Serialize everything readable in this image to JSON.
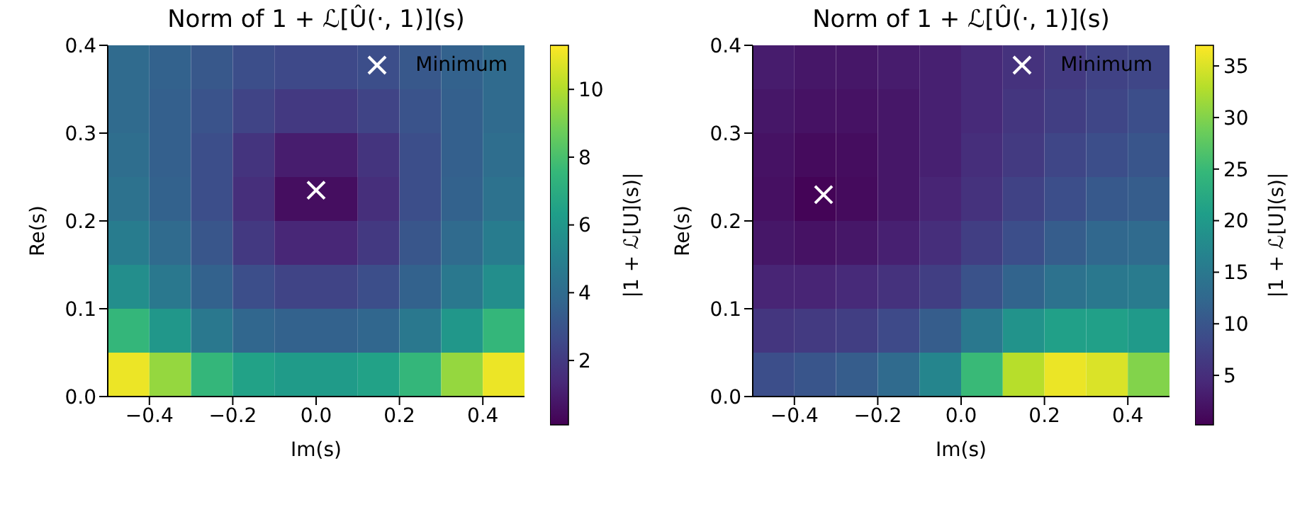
{
  "chart_data": [
    {
      "type": "heatmap",
      "title": "Norm of 1 + ℒ[Û(·, 1)](s)",
      "xlabel": "Im(s)",
      "ylabel": "Re(s)",
      "clabel": "|1 + ℒ[U](s)|",
      "legend": "top right",
      "marker": "cross",
      "xlim": [
        -0.5,
        0.5
      ],
      "xticks": [
        {
          "value": -0.4,
          "label": "−0.4"
        },
        {
          "value": -0.2,
          "label": "−0.2"
        },
        {
          "value": 0,
          "label": "0.0"
        },
        {
          "value": 0.2,
          "label": "0.2"
        },
        {
          "value": 0.4,
          "label": "0.4"
        }
      ],
      "ylim": [
        0,
        0.4
      ],
      "yticks": [
        {
          "value": 0,
          "label": "0.0"
        },
        {
          "value": 0.1,
          "label": "0.1"
        },
        {
          "value": 0.2,
          "label": "0.2"
        },
        {
          "value": 0.3,
          "label": "0.3"
        },
        {
          "value": 0.4,
          "label": "0.4"
        }
      ],
      "clim": [
        0.1,
        11.3
      ],
      "cticks": [
        2,
        4,
        6,
        8,
        10
      ],
      "cells": [
        [
          4.0,
          3.6,
          3.2,
          2.8,
          2.6,
          2.6,
          2.8,
          3.2,
          3.6,
          4.0
        ],
        [
          4.0,
          3.5,
          3.0,
          2.4,
          2.0,
          2.0,
          2.4,
          3.0,
          3.5,
          4.0
        ],
        [
          4.1,
          3.5,
          2.8,
          1.8,
          1.0,
          1.0,
          1.8,
          2.8,
          3.5,
          4.1
        ],
        [
          4.3,
          3.6,
          2.8,
          1.6,
          0.5,
          0.5,
          1.6,
          2.8,
          3.6,
          4.3
        ],
        [
          4.8,
          4.0,
          3.1,
          2.0,
          1.3,
          1.3,
          2.0,
          3.1,
          4.0,
          4.8
        ],
        [
          5.6,
          4.6,
          3.6,
          2.8,
          2.4,
          2.4,
          2.8,
          3.6,
          4.6,
          5.6
        ],
        [
          7.5,
          6.0,
          4.6,
          3.8,
          3.6,
          3.6,
          3.8,
          4.6,
          6.0,
          7.5
        ],
        [
          11.0,
          9.5,
          7.5,
          6.5,
          6.2,
          6.2,
          6.5,
          7.5,
          9.5,
          11.0
        ]
      ],
      "series": [
        {
          "type": "scatter",
          "name": "Minimum",
          "color": "#ffffff",
          "x": [
            0.0
          ],
          "values": [
            0.235
          ]
        }
      ]
    },
    {
      "type": "heatmap",
      "title": "Norm of 1 + ℒ[Û(·, 1)](s)",
      "xlabel": "Im(s)",
      "ylabel": "Re(s)",
      "clabel": "|1 + ℒ[U](s)|",
      "legend": "top right",
      "marker": "cross",
      "xlim": [
        -0.5,
        0.5
      ],
      "xticks": [
        {
          "value": -0.4,
          "label": "−0.4"
        },
        {
          "value": -0.2,
          "label": "−0.2"
        },
        {
          "value": 0,
          "label": "0.0"
        },
        {
          "value": 0.2,
          "label": "0.2"
        },
        {
          "value": 0.4,
          "label": "0.4"
        }
      ],
      "ylim": [
        0,
        0.4
      ],
      "yticks": [
        {
          "value": 0,
          "label": "0.0"
        },
        {
          "value": 0.1,
          "label": "0.1"
        },
        {
          "value": 0.2,
          "label": "0.2"
        },
        {
          "value": 0.3,
          "label": "0.3"
        },
        {
          "value": 0.4,
          "label": "0.4"
        }
      ],
      "clim": [
        0.2,
        37
      ],
      "cticks": [
        5,
        10,
        15,
        20,
        25,
        30,
        35
      ],
      "cells": [
        [
          3,
          2.5,
          2.5,
          3,
          3.5,
          4.5,
          5.5,
          6.5,
          7.5,
          8
        ],
        [
          2.5,
          2,
          2,
          2.5,
          3.5,
          4.5,
          6,
          7,
          8,
          9
        ],
        [
          2,
          1.2,
          1.5,
          2.5,
          3.5,
          5,
          6.5,
          8,
          9,
          10
        ],
        [
          1.8,
          0.5,
          1.2,
          2.5,
          4,
          5.5,
          7.5,
          9,
          10.5,
          11
        ],
        [
          2.5,
          2,
          2.5,
          3.5,
          5,
          7,
          9,
          11,
          12.5,
          13
        ],
        [
          4,
          4,
          4.5,
          5.5,
          7,
          9.5,
          12,
          14,
          15,
          15.5
        ],
        [
          6,
          6.5,
          7,
          8.5,
          11,
          15,
          19,
          21,
          21,
          20
        ],
        [
          9,
          10,
          11,
          13,
          17,
          25,
          33,
          36,
          35,
          30
        ]
      ],
      "series": [
        {
          "type": "scatter",
          "name": "Minimum",
          "color": "#ffffff",
          "x": [
            -0.33
          ],
          "values": [
            0.23
          ]
        }
      ]
    }
  ]
}
